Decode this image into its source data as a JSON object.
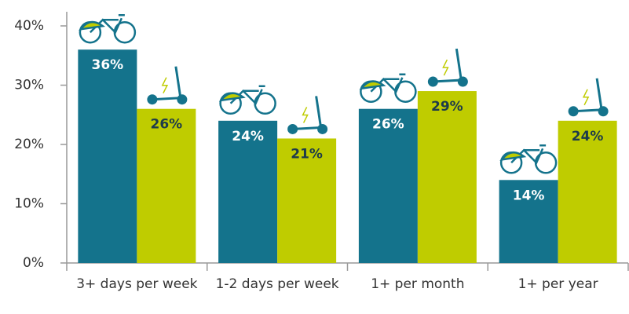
{
  "chart_data": {
    "type": "bar",
    "categories": [
      "3+ days per week",
      "1-2 days per week",
      "1+ per month",
      "1+ per year"
    ],
    "series": [
      {
        "color": "#14738c",
        "values": [
          36,
          24,
          26,
          14
        ],
        "value_labels": [
          "36%",
          "24%",
          "26%",
          "14%"
        ]
      },
      {
        "color": "#bfcc00",
        "values": [
          26,
          21,
          29,
          24
        ],
        "value_labels": [
          "26%",
          "21%",
          "29%",
          "24%"
        ]
      }
    ],
    "ylim": [
      0,
      40
    ],
    "yticks": [
      {
        "value": 0,
        "label": "0%"
      },
      {
        "value": 10,
        "label": "10%"
      },
      {
        "value": 20,
        "label": "20%"
      },
      {
        "value": 30,
        "label": "30%"
      },
      {
        "value": 40,
        "label": "40%"
      }
    ]
  }
}
